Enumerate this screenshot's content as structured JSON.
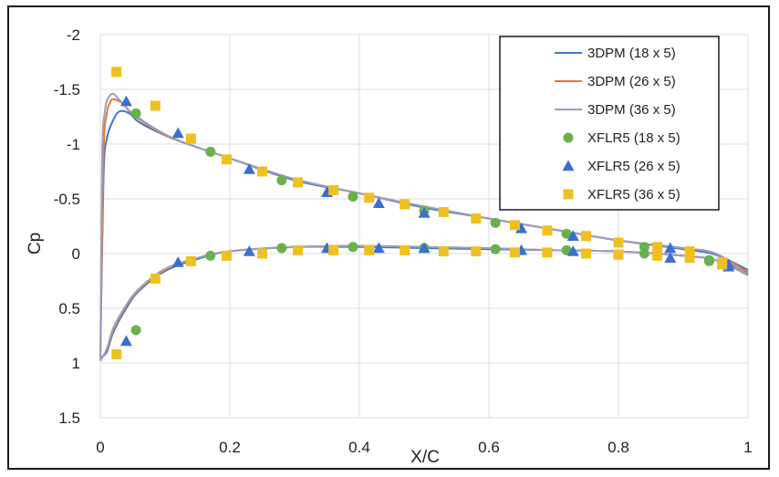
{
  "chart_data": {
    "type": "line",
    "title": "",
    "xlabel": "X/C",
    "ylabel": "Cp",
    "xlim": [
      0,
      1
    ],
    "ylim": [
      -2,
      1.5
    ],
    "y_inverted": true,
    "grid": true,
    "legend_position": "top-right",
    "x_ticks": [
      "0",
      "0.2",
      "0.4",
      "0.6",
      "0.8",
      "1"
    ],
    "y_ticks": [
      "-2",
      "-1.5",
      "-1",
      "-0.5",
      "0",
      "0.5",
      "1",
      "1.5"
    ],
    "series": [
      {
        "name": "3DPM (18 x 5)",
        "type": "line",
        "color": "#3a78c8",
        "upper": [
          [
            0.0,
            0.95
          ],
          [
            0.005,
            -0.7
          ],
          [
            0.01,
            -1.05
          ],
          [
            0.02,
            -1.22
          ],
          [
            0.03,
            -1.3
          ],
          [
            0.045,
            -1.28
          ],
          [
            0.06,
            -1.2
          ],
          [
            0.1,
            -1.08
          ],
          [
            0.15,
            -0.97
          ],
          [
            0.2,
            -0.87
          ],
          [
            0.3,
            -0.67
          ],
          [
            0.4,
            -0.55
          ],
          [
            0.5,
            -0.42
          ],
          [
            0.6,
            -0.32
          ],
          [
            0.7,
            -0.22
          ],
          [
            0.8,
            -0.12
          ],
          [
            0.9,
            -0.04
          ],
          [
            0.95,
            0.01
          ],
          [
            1.0,
            0.15
          ]
        ],
        "lower": [
          [
            0.0,
            0.95
          ],
          [
            0.01,
            0.9
          ],
          [
            0.02,
            0.72
          ],
          [
            0.04,
            0.5
          ],
          [
            0.06,
            0.34
          ],
          [
            0.1,
            0.16
          ],
          [
            0.15,
            0.05
          ],
          [
            0.2,
            -0.02
          ],
          [
            0.3,
            -0.06
          ],
          [
            0.4,
            -0.06
          ],
          [
            0.5,
            -0.05
          ],
          [
            0.6,
            -0.04
          ],
          [
            0.7,
            -0.03
          ],
          [
            0.8,
            -0.02
          ],
          [
            0.9,
            0.02
          ],
          [
            0.95,
            0.06
          ],
          [
            1.0,
            0.17
          ]
        ]
      },
      {
        "name": "3DPM (26 x 5)",
        "type": "line",
        "color": "#e8763a",
        "upper": [
          [
            0.0,
            0.97
          ],
          [
            0.005,
            -0.9
          ],
          [
            0.01,
            -1.28
          ],
          [
            0.015,
            -1.38
          ],
          [
            0.02,
            -1.41
          ],
          [
            0.035,
            -1.37
          ],
          [
            0.05,
            -1.27
          ],
          [
            0.1,
            -1.08
          ],
          [
            0.15,
            -0.97
          ],
          [
            0.2,
            -0.87
          ],
          [
            0.3,
            -0.68
          ],
          [
            0.4,
            -0.55
          ],
          [
            0.5,
            -0.43
          ],
          [
            0.6,
            -0.32
          ],
          [
            0.7,
            -0.22
          ],
          [
            0.8,
            -0.12
          ],
          [
            0.9,
            -0.05
          ],
          [
            0.95,
            0.0
          ],
          [
            1.0,
            0.17
          ]
        ],
        "lower": [
          [
            0.0,
            0.97
          ],
          [
            0.01,
            0.88
          ],
          [
            0.02,
            0.7
          ],
          [
            0.04,
            0.48
          ],
          [
            0.06,
            0.33
          ],
          [
            0.1,
            0.15
          ],
          [
            0.15,
            0.04
          ],
          [
            0.2,
            -0.02
          ],
          [
            0.3,
            -0.06
          ],
          [
            0.4,
            -0.07
          ],
          [
            0.5,
            -0.06
          ],
          [
            0.6,
            -0.05
          ],
          [
            0.7,
            -0.03
          ],
          [
            0.8,
            -0.02
          ],
          [
            0.9,
            0.02
          ],
          [
            0.95,
            0.06
          ],
          [
            1.0,
            0.18
          ]
        ]
      },
      {
        "name": "3DPM (36 x 5)",
        "type": "line",
        "color": "#9a9fbf",
        "upper": [
          [
            0.0,
            0.98
          ],
          [
            0.003,
            -0.9
          ],
          [
            0.007,
            -1.3
          ],
          [
            0.012,
            -1.42
          ],
          [
            0.02,
            -1.46
          ],
          [
            0.03,
            -1.4
          ],
          [
            0.05,
            -1.28
          ],
          [
            0.1,
            -1.09
          ],
          [
            0.15,
            -0.97
          ],
          [
            0.2,
            -0.87
          ],
          [
            0.3,
            -0.68
          ],
          [
            0.4,
            -0.55
          ],
          [
            0.5,
            -0.43
          ],
          [
            0.6,
            -0.32
          ],
          [
            0.7,
            -0.22
          ],
          [
            0.8,
            -0.12
          ],
          [
            0.9,
            -0.05
          ],
          [
            0.95,
            0.0
          ],
          [
            1.0,
            0.2
          ]
        ],
        "lower": [
          [
            0.0,
            0.98
          ],
          [
            0.01,
            0.87
          ],
          [
            0.02,
            0.68
          ],
          [
            0.04,
            0.47
          ],
          [
            0.06,
            0.32
          ],
          [
            0.1,
            0.14
          ],
          [
            0.15,
            0.04
          ],
          [
            0.2,
            -0.02
          ],
          [
            0.3,
            -0.06
          ],
          [
            0.4,
            -0.07
          ],
          [
            0.5,
            -0.06
          ],
          [
            0.6,
            -0.05
          ],
          [
            0.7,
            -0.03
          ],
          [
            0.8,
            -0.02
          ],
          [
            0.9,
            0.02
          ],
          [
            0.95,
            0.06
          ],
          [
            1.0,
            0.2
          ]
        ]
      },
      {
        "name": "XFLR5 (18 x 5)",
        "type": "scatter",
        "marker": "circle",
        "color": "#6ab04c",
        "points": [
          [
            0.055,
            -1.28
          ],
          [
            0.17,
            -0.93
          ],
          [
            0.28,
            -0.67
          ],
          [
            0.39,
            -0.52
          ],
          [
            0.5,
            -0.39
          ],
          [
            0.61,
            -0.28
          ],
          [
            0.72,
            -0.18
          ],
          [
            0.84,
            -0.06
          ],
          [
            0.94,
            0.06
          ],
          [
            0.055,
            0.7
          ],
          [
            0.17,
            0.02
          ],
          [
            0.28,
            -0.05
          ],
          [
            0.39,
            -0.06
          ],
          [
            0.5,
            -0.05
          ],
          [
            0.61,
            -0.04
          ],
          [
            0.72,
            -0.03
          ],
          [
            0.84,
            0.0
          ],
          [
            0.94,
            0.07
          ]
        ]
      },
      {
        "name": "XFLR5 (26 x 5)",
        "type": "scatter",
        "marker": "triangle",
        "color": "#3a6fd0",
        "points": [
          [
            0.04,
            -1.39
          ],
          [
            0.12,
            -1.1
          ],
          [
            0.23,
            -0.77
          ],
          [
            0.35,
            -0.56
          ],
          [
            0.43,
            -0.46
          ],
          [
            0.5,
            -0.37
          ],
          [
            0.65,
            -0.23
          ],
          [
            0.73,
            -0.16
          ],
          [
            0.88,
            -0.05
          ],
          [
            0.97,
            0.1
          ],
          [
            0.04,
            0.8
          ],
          [
            0.12,
            0.08
          ],
          [
            0.23,
            -0.02
          ],
          [
            0.35,
            -0.05
          ],
          [
            0.43,
            -0.05
          ],
          [
            0.5,
            -0.05
          ],
          [
            0.65,
            -0.03
          ],
          [
            0.73,
            -0.02
          ],
          [
            0.88,
            0.04
          ],
          [
            0.97,
            0.12
          ]
        ]
      },
      {
        "name": "XFLR5 (36 x 5)",
        "type": "scatter",
        "marker": "square",
        "color": "#f0c020",
        "points": [
          [
            0.025,
            -1.66
          ],
          [
            0.085,
            -1.35
          ],
          [
            0.14,
            -1.05
          ],
          [
            0.195,
            -0.86
          ],
          [
            0.25,
            -0.75
          ],
          [
            0.305,
            -0.65
          ],
          [
            0.36,
            -0.58
          ],
          [
            0.415,
            -0.51
          ],
          [
            0.47,
            -0.45
          ],
          [
            0.53,
            -0.38
          ],
          [
            0.58,
            -0.32
          ],
          [
            0.64,
            -0.26
          ],
          [
            0.69,
            -0.21
          ],
          [
            0.75,
            -0.16
          ],
          [
            0.8,
            -0.1
          ],
          [
            0.86,
            -0.06
          ],
          [
            0.91,
            -0.02
          ],
          [
            0.96,
            0.08
          ],
          [
            0.025,
            0.92
          ],
          [
            0.085,
            0.23
          ],
          [
            0.14,
            0.07
          ],
          [
            0.195,
            0.02
          ],
          [
            0.25,
            0.0
          ],
          [
            0.305,
            -0.03
          ],
          [
            0.36,
            -0.03
          ],
          [
            0.415,
            -0.03
          ],
          [
            0.47,
            -0.03
          ],
          [
            0.53,
            -0.02
          ],
          [
            0.58,
            -0.02
          ],
          [
            0.64,
            -0.01
          ],
          [
            0.69,
            -0.01
          ],
          [
            0.75,
            0.0
          ],
          [
            0.8,
            0.01
          ],
          [
            0.86,
            0.02
          ],
          [
            0.91,
            0.04
          ],
          [
            0.96,
            0.1
          ]
        ]
      }
    ]
  }
}
